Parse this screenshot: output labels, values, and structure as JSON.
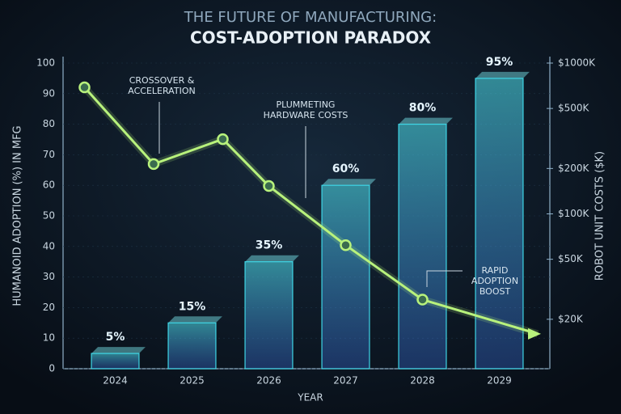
{
  "chart_data": {
    "type": "bar",
    "title": "THE FUTURE OF MANUFACTURING:",
    "subtitle": "COST-ADOPTION PARADOX",
    "x_label": "YEAR",
    "y_label": "HUMANOID ADOPTION (%) IN MFG",
    "y2_label": "ROBOT UNIT COSTS ($K)",
    "categories": [
      "2024",
      "2025",
      "2026",
      "2027",
      "2028",
      "2029"
    ],
    "values": [
      5,
      15,
      35,
      60,
      80,
      95
    ],
    "value_labels": [
      "5%",
      "15%",
      "35%",
      "60%",
      "80%",
      "95%"
    ],
    "color": "#3fd6e6",
    "ylim": [
      0,
      100
    ],
    "yticks": [
      0,
      10,
      20,
      30,
      40,
      50,
      60,
      70,
      80,
      90,
      100
    ],
    "y2lim": [
      9.4,
      1000
    ],
    "y2_log": true,
    "y2ticks": [
      {
        "value": 20,
        "label": "$20K"
      },
      {
        "value": 50,
        "label": "$50K"
      },
      {
        "value": 100,
        "label": "$100K"
      },
      {
        "value": 200,
        "label": "$200K"
      },
      {
        "value": 500,
        "label": "$500K"
      },
      {
        "value": 1000,
        "label": "$1000K"
      }
    ],
    "xlim": [
      2023.5,
      2029.5
    ],
    "series": [
      {
        "type": "line",
        "axis": "y2",
        "color": "#b8f27c",
        "x": [
          2023.6,
          2024.5,
          2025.4,
          2026,
          2027,
          2028,
          2029.5
        ],
        "values": [
          690,
          214,
          313,
          153,
          62,
          27,
          16
        ]
      }
    ],
    "annotations": [
      {
        "lines": [
          "CROSSOVER &",
          "ACCELERATION"
        ]
      },
      {
        "lines": [
          "PLUMMETING",
          "HARDWARE COSTS"
        ]
      },
      {
        "lines": [
          "RAPID",
          "ADOPTION",
          "BOOST"
        ]
      }
    ]
  }
}
